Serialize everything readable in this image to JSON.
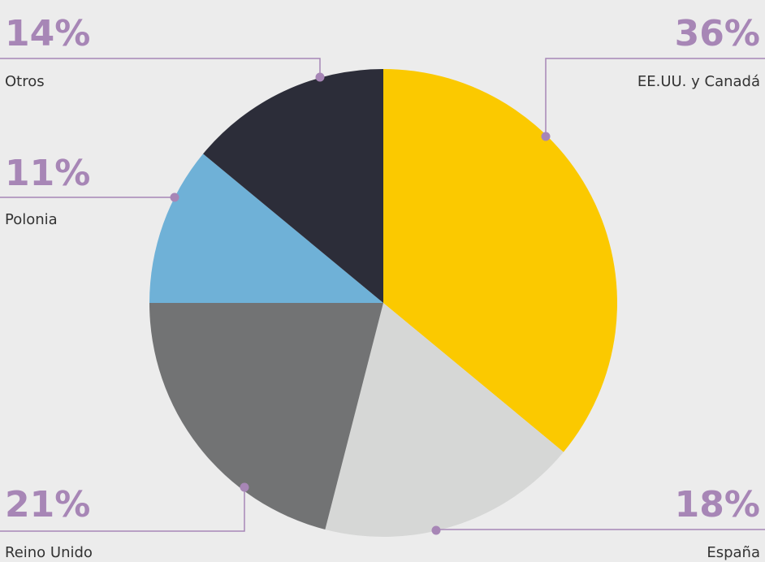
{
  "chart_data": {
    "type": "pie",
    "title": "",
    "slices": [
      {
        "label": "EE.UU. y Canadá",
        "value": 36,
        "percent_label": "36%",
        "color": "#fbc900"
      },
      {
        "label": "España",
        "value": 18,
        "percent_label": "18%",
        "color": "#d6d7d6"
      },
      {
        "label": "Reino Unido",
        "value": 21,
        "percent_label": "21%",
        "color": "#727374"
      },
      {
        "label": "Polonia",
        "value": 11,
        "percent_label": "11%",
        "color": "#6fb1d7"
      },
      {
        "label": "Otros",
        "value": 14,
        "percent_label": "14%",
        "color": "#2c2d39"
      }
    ],
    "label_color": "#a786b6",
    "text_color": "#333333"
  }
}
